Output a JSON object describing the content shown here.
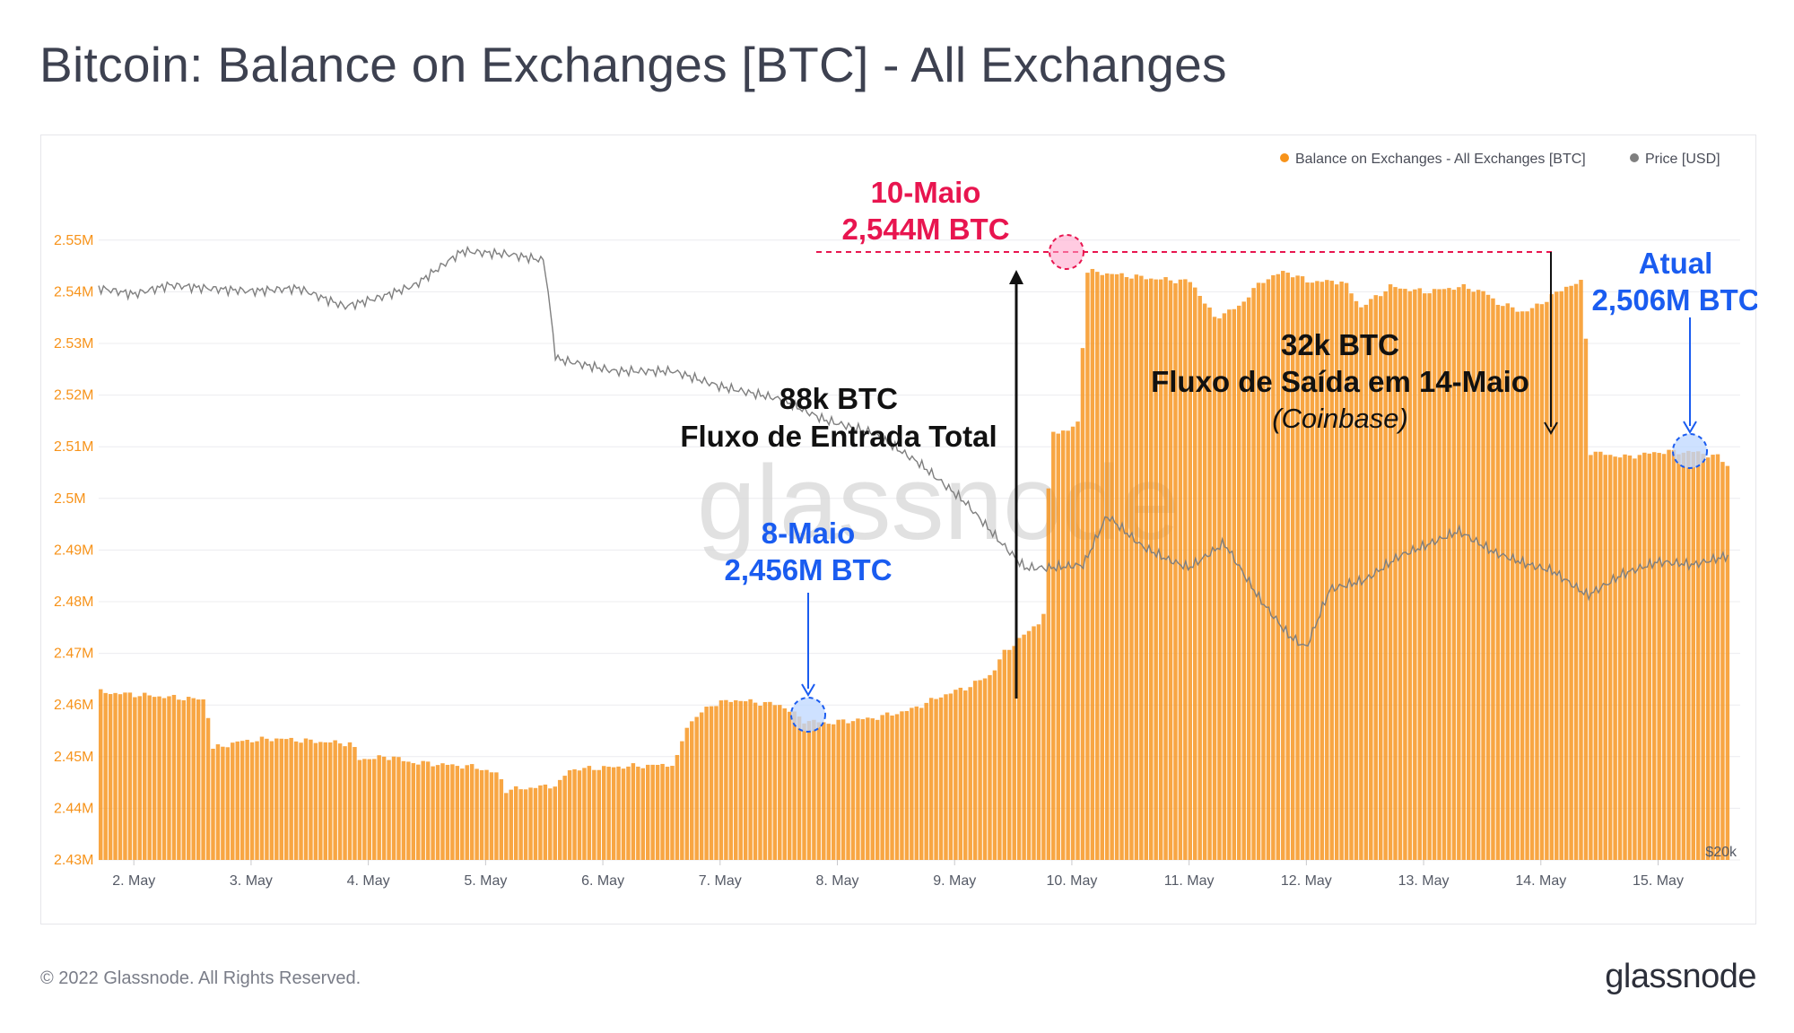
{
  "page": {
    "title": "Bitcoin: Balance on Exchanges [BTC] - All Exchanges",
    "footer_copyright": "© 2022 Glassnode. All Rights Reserved.",
    "footer_logo": "glassnode",
    "watermark": "glassnode"
  },
  "colors": {
    "balance": "#F7931A",
    "price": "#7f7f7f",
    "red_annotation": "#e8154f",
    "blue_annotation": "#1a5cf0",
    "black_annotation": "#111111"
  },
  "chart_data": {
    "type": "bar",
    "legend": [
      {
        "name": "Balance on Exchanges - All Exchanges [BTC]",
        "color": "#F7931A"
      },
      {
        "name": "Price [USD]",
        "color": "#7f7f7f"
      }
    ],
    "legend_position": "top-right",
    "grid": true,
    "x_unit": "day",
    "xlim": [
      1.7,
      15.7
    ],
    "x_ticks": [
      "2. May",
      "3. May",
      "4. May",
      "5. May",
      "6. May",
      "7. May",
      "8. May",
      "9. May",
      "10. May",
      "11. May",
      "12. May",
      "13. May",
      "14. May",
      "15. May"
    ],
    "ylim": [
      2.43,
      2.555
    ],
    "y_ticks": [
      "2.43M",
      "2.44M",
      "2.45M",
      "2.46M",
      "2.47M",
      "2.48M",
      "2.49M",
      "2.5M",
      "2.51M",
      "2.52M",
      "2.53M",
      "2.54M",
      "2.55M"
    ],
    "y_tick_values": [
      2.43,
      2.44,
      2.45,
      2.46,
      2.47,
      2.48,
      2.49,
      2.5,
      2.51,
      2.52,
      2.53,
      2.54,
      2.55
    ],
    "right_axis_label": "$20k",
    "series": [
      {
        "name": "Balance on Exchanges - All Exchanges [BTC]",
        "unit": "M BTC",
        "points": [
          [
            1.7,
            2.4625
          ],
          [
            2.0,
            2.462
          ],
          [
            2.3,
            2.4615
          ],
          [
            2.6,
            2.461
          ],
          [
            2.65,
            2.4515
          ],
          [
            2.9,
            2.453
          ],
          [
            3.2,
            2.4535
          ],
          [
            3.5,
            2.453
          ],
          [
            3.85,
            2.4525
          ],
          [
            3.9,
            2.4495
          ],
          [
            4.2,
            2.45
          ],
          [
            4.3,
            2.449
          ],
          [
            4.6,
            2.4485
          ],
          [
            4.9,
            2.448
          ],
          [
            5.1,
            2.4465
          ],
          [
            5.15,
            2.4435
          ],
          [
            5.6,
            2.4445
          ],
          [
            5.7,
            2.4475
          ],
          [
            6.1,
            2.448
          ],
          [
            6.6,
            2.4485
          ],
          [
            6.7,
            2.456
          ],
          [
            6.9,
            2.46
          ],
          [
            7.1,
            2.461
          ],
          [
            7.5,
            2.46
          ],
          [
            7.7,
            2.457
          ],
          [
            7.9,
            2.4565
          ],
          [
            8.3,
            2.4575
          ],
          [
            8.6,
            2.459
          ],
          [
            8.9,
            2.462
          ],
          [
            9.1,
            2.4635
          ],
          [
            9.3,
            2.466
          ],
          [
            9.4,
            2.47
          ],
          [
            9.6,
            2.474
          ],
          [
            9.7,
            2.476
          ],
          [
            9.75,
            2.478
          ],
          [
            9.8,
            2.513
          ],
          [
            9.95,
            2.513
          ],
          [
            10.05,
            2.515
          ],
          [
            10.1,
            2.544
          ],
          [
            10.3,
            2.5435
          ],
          [
            10.7,
            2.5425
          ],
          [
            11.0,
            2.542
          ],
          [
            11.2,
            2.535
          ],
          [
            11.4,
            2.537
          ],
          [
            11.6,
            2.542
          ],
          [
            11.8,
            2.544
          ],
          [
            12.0,
            2.542
          ],
          [
            12.3,
            2.542
          ],
          [
            12.45,
            2.537
          ],
          [
            12.7,
            2.541
          ],
          [
            13.0,
            2.54
          ],
          [
            13.3,
            2.541
          ],
          [
            13.5,
            2.54
          ],
          [
            13.6,
            2.538
          ],
          [
            13.85,
            2.536
          ],
          [
            14.0,
            2.538
          ],
          [
            14.2,
            2.541
          ],
          [
            14.35,
            2.542
          ],
          [
            14.4,
            2.509
          ],
          [
            14.7,
            2.508
          ],
          [
            15.0,
            2.509
          ],
          [
            15.3,
            2.509
          ],
          [
            15.5,
            2.508
          ],
          [
            15.6,
            2.506
          ]
        ]
      },
      {
        "name": "Price [USD]",
        "unit": "USD",
        "points": [
          [
            1.7,
            38600
          ],
          [
            2.0,
            38400
          ],
          [
            2.3,
            38700
          ],
          [
            2.6,
            38600
          ],
          [
            3.0,
            38500
          ],
          [
            3.4,
            38600
          ],
          [
            3.8,
            38000
          ],
          [
            4.1,
            38300
          ],
          [
            4.4,
            38700
          ],
          [
            4.8,
            39800
          ],
          [
            5.2,
            39700
          ],
          [
            5.5,
            39500
          ],
          [
            5.6,
            36300
          ],
          [
            6.1,
            35900
          ],
          [
            6.6,
            35900
          ],
          [
            7.0,
            35400
          ],
          [
            7.5,
            35000
          ],
          [
            7.9,
            34300
          ],
          [
            8.3,
            33900
          ],
          [
            8.7,
            32900
          ],
          [
            9.1,
            31600
          ],
          [
            9.4,
            30300
          ],
          [
            9.6,
            29500
          ],
          [
            9.8,
            29500
          ],
          [
            10.1,
            29600
          ],
          [
            10.3,
            31200
          ],
          [
            10.6,
            30200
          ],
          [
            10.8,
            29800
          ],
          [
            11.0,
            29500
          ],
          [
            11.3,
            30300
          ],
          [
            11.6,
            28500
          ],
          [
            11.85,
            27300
          ],
          [
            12.0,
            26900
          ],
          [
            12.2,
            28800
          ],
          [
            12.5,
            29100
          ],
          [
            12.8,
            29900
          ],
          [
            13.0,
            30200
          ],
          [
            13.3,
            30700
          ],
          [
            13.6,
            30000
          ],
          [
            13.9,
            29600
          ],
          [
            14.1,
            29400
          ],
          [
            14.4,
            28600
          ],
          [
            14.7,
            29300
          ],
          [
            15.0,
            29700
          ],
          [
            15.3,
            29600
          ],
          [
            15.6,
            29900
          ]
        ]
      }
    ],
    "annotations": [
      {
        "id": "peak",
        "lines": [
          "10-Maio",
          "2,544M BTC"
        ],
        "point": [
          10.15,
          2.544
        ]
      },
      {
        "id": "low",
        "lines": [
          "8-Maio",
          "2,456M BTC"
        ],
        "point": [
          7.9,
          2.4565
        ]
      },
      {
        "id": "current",
        "lines": [
          "Atual",
          "2,506M BTC"
        ],
        "point": [
          15.6,
          2.506
        ]
      },
      {
        "id": "inflow",
        "lines": [
          "88k BTC",
          "Fluxo de Entrada Total"
        ]
      },
      {
        "id": "outflow",
        "lines": [
          "32k BTC",
          "Fluxo de Saída em 14-Maio",
          "(Coinbase)"
        ]
      }
    ]
  }
}
